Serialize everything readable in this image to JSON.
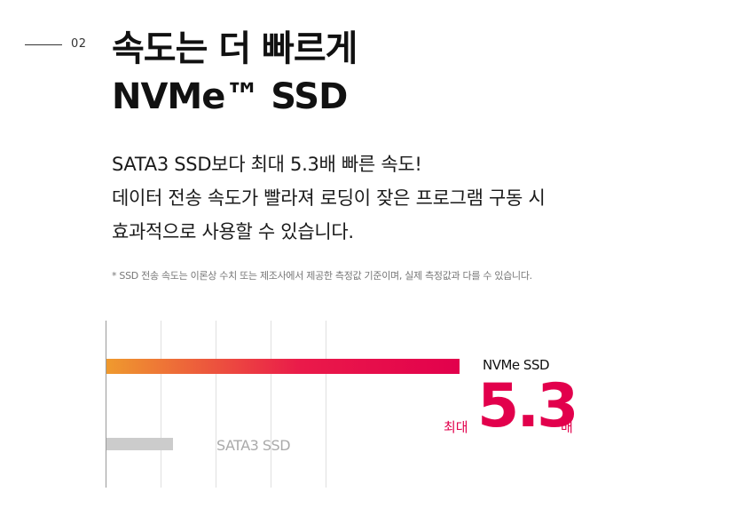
{
  "section": {
    "number": "02"
  },
  "headline": {
    "line1": "속도는 더 빠르게",
    "line2": "NVMe™ SSD"
  },
  "description": {
    "line1": "SATA3 SSD보다 최대 5.3배 빠른 속도!",
    "line2": "데이터 전송 속도가 빨라져 로딩이 잦은 프로그램 구동 시",
    "line3": "효과적으로 사용할 수 있습니다."
  },
  "note": "* SSD 전송 속도는 이론상 수치 또는 제조사에서 제공한 측정값 기준이며, 실제 측정값과 다를 수 있습니다.",
  "comparison": {
    "prefix": "최대",
    "value": "5.3",
    "suffix": "배"
  },
  "colors": {
    "accent": "#e2004c",
    "gradient_start": "#ef9a2e",
    "sata_bar": "#cccccc"
  },
  "chart_data": {
    "type": "bar",
    "orientation": "horizontal",
    "categories": [
      "NVMe SSD",
      "SATA3 SSD"
    ],
    "values": [
      5.3,
      1
    ],
    "xlim": [
      0,
      6.0
    ],
    "grid": true,
    "title": "",
    "xlabel": "",
    "ylabel": ""
  }
}
